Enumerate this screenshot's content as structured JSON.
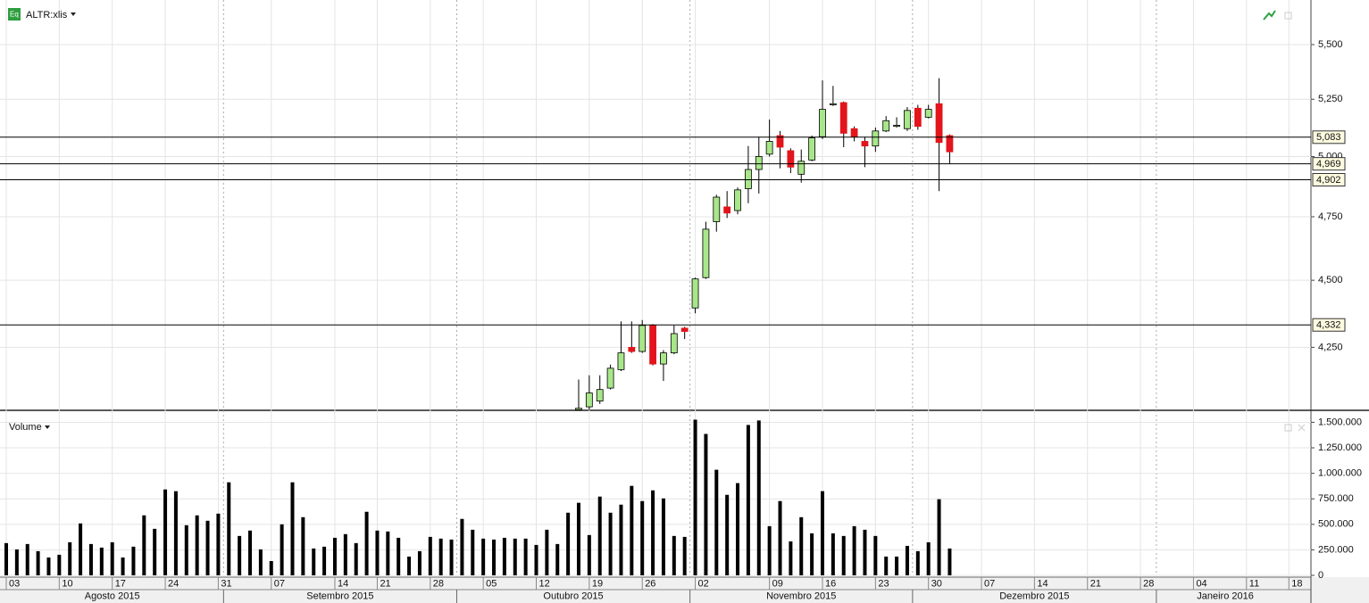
{
  "chart_data": [
    {
      "type": "candlestick",
      "title": "ALTR:xlis",
      "log_scale": true,
      "grid": true,
      "ylim": [
        4028,
        5713
      ],
      "yticks": [
        {
          "value": 4250,
          "label": "4,250"
        },
        {
          "value": 4500,
          "label": "4,500"
        },
        {
          "value": 4750,
          "label": "4,750"
        },
        {
          "value": 5000,
          "label": "5,000"
        },
        {
          "value": 5250,
          "label": "5,250"
        },
        {
          "value": 5500,
          "label": "5,500"
        }
      ],
      "up_color": "#a8e68a",
      "down_color": "#e3141b",
      "levels": [
        {
          "value": 5083,
          "label": "5,083"
        },
        {
          "value": 4969,
          "label": "4,969"
        },
        {
          "value": 4902,
          "label": "4,902"
        },
        {
          "value": 4332,
          "label": "4,332"
        }
      ],
      "open": [
        null,
        null,
        null,
        null,
        null,
        null,
        null,
        null,
        null,
        null,
        null,
        null,
        null,
        null,
        null,
        null,
        null,
        null,
        null,
        null,
        null,
        null,
        null,
        null,
        null,
        null,
        null,
        null,
        null,
        null,
        null,
        null,
        null,
        null,
        null,
        null,
        null,
        null,
        null,
        null,
        null,
        null,
        null,
        null,
        null,
        null,
        null,
        null,
        null,
        null,
        null,
        null,
        null,
        null,
        4030,
        4040,
        4060,
        4105,
        4170,
        4250,
        4235,
        4330,
        4190,
        4230,
        4320,
        4395,
        4510,
        4730,
        4790,
        4775,
        4865,
        4945,
        5010,
        5090,
        5025,
        4925,
        4985,
        5085,
        5225,
        5235,
        5120,
        5065,
        5045,
        5110,
        5130,
        5120,
        5210,
        5170,
        5230,
        5090,
        null,
        null,
        null,
        null,
        null,
        null,
        null,
        null,
        null,
        null,
        null,
        null,
        null,
        null,
        null,
        null,
        null,
        null,
        null,
        null,
        null,
        null,
        null,
        null,
        null,
        null,
        null,
        null,
        null,
        null,
        null,
        null
      ],
      "high": [
        null,
        null,
        null,
        null,
        null,
        null,
        null,
        null,
        null,
        null,
        null,
        null,
        null,
        null,
        null,
        null,
        null,
        null,
        null,
        null,
        null,
        null,
        null,
        null,
        null,
        null,
        null,
        null,
        null,
        null,
        null,
        null,
        null,
        null,
        null,
        null,
        null,
        null,
        null,
        null,
        null,
        null,
        null,
        null,
        null,
        null,
        null,
        null,
        null,
        null,
        null,
        null,
        null,
        null,
        4135,
        4150,
        4150,
        4188,
        4345,
        4345,
        4350,
        4335,
        4240,
        4330,
        4325,
        4510,
        4730,
        4840,
        4855,
        4870,
        5045,
        5085,
        5160,
        5110,
        5035,
        5030,
        5090,
        5335,
        5310,
        5240,
        5130,
        5085,
        5125,
        5175,
        5170,
        5215,
        5225,
        5225,
        5345,
        5095,
        null,
        null,
        null,
        null,
        null,
        null,
        null,
        null,
        null,
        null,
        null,
        null,
        null,
        null,
        null,
        null,
        null,
        null,
        null,
        null,
        null,
        null,
        null,
        null,
        null,
        null,
        null,
        null,
        null,
        null,
        null,
        null
      ],
      "low": [
        null,
        null,
        null,
        null,
        null,
        null,
        null,
        null,
        null,
        null,
        null,
        null,
        null,
        null,
        null,
        null,
        null,
        null,
        null,
        null,
        null,
        null,
        null,
        null,
        null,
        null,
        null,
        null,
        null,
        null,
        null,
        null,
        null,
        null,
        null,
        null,
        null,
        null,
        null,
        null,
        null,
        null,
        null,
        null,
        null,
        null,
        null,
        null,
        null,
        null,
        null,
        null,
        null,
        null,
        4030,
        4030,
        4050,
        4100,
        4165,
        4230,
        4230,
        4185,
        4130,
        4225,
        4280,
        4375,
        4505,
        4690,
        4745,
        4760,
        4805,
        4845,
        5000,
        4950,
        4930,
        4890,
        4980,
        5075,
        5220,
        5040,
        5065,
        4955,
        5020,
        5105,
        5125,
        5110,
        5115,
        5165,
        4855,
        4970,
        null,
        null,
        null,
        null,
        null,
        null,
        null,
        null,
        null,
        null,
        null,
        null,
        null,
        null,
        null,
        null,
        null,
        null,
        null,
        null,
        null,
        null,
        null,
        null,
        null,
        null,
        null,
        null,
        null,
        null,
        null,
        null
      ],
      "close": [
        null,
        null,
        null,
        null,
        null,
        null,
        null,
        null,
        null,
        null,
        null,
        null,
        null,
        null,
        null,
        null,
        null,
        null,
        null,
        null,
        null,
        null,
        null,
        null,
        null,
        null,
        null,
        null,
        null,
        null,
        null,
        null,
        null,
        null,
        null,
        null,
        null,
        null,
        null,
        null,
        null,
        null,
        null,
        null,
        null,
        null,
        null,
        null,
        null,
        null,
        null,
        null,
        null,
        null,
        4035,
        4088,
        4100,
        4175,
        4230,
        4235,
        4330,
        4190,
        4230,
        4300,
        4308,
        4505,
        4700,
        4830,
        4765,
        4860,
        4945,
        5000,
        5065,
        5040,
        4955,
        4980,
        5080,
        5205,
        5230,
        5100,
        5085,
        5045,
        5110,
        5155,
        5135,
        5200,
        5130,
        5205,
        5060,
        5020,
        null,
        null,
        null,
        null,
        null,
        null,
        null,
        null,
        null,
        null,
        null,
        null,
        null,
        null,
        null,
        null,
        null,
        null,
        null,
        null,
        null,
        null,
        null,
        null,
        null,
        null,
        null,
        null,
        null,
        null,
        null,
        null
      ]
    },
    {
      "type": "bar",
      "title": "Volume",
      "color": "#000000",
      "ylim": [
        0,
        1600000
      ],
      "yticks": [
        0,
        {
          "value": 250000,
          "label": "250.000"
        },
        {
          "value": 500000,
          "label": "500.000"
        },
        {
          "value": 750000,
          "label": "750.000"
        },
        {
          "value": 1000000,
          "label": "1.000.000"
        },
        {
          "value": 1250000,
          "label": "1.250.000"
        },
        {
          "value": 1500000,
          "label": "1.500.000"
        }
      ],
      "categories": [
        "03",
        null,
        null,
        null,
        null,
        "10",
        null,
        null,
        null,
        null,
        "17",
        null,
        null,
        null,
        null,
        "24",
        null,
        null,
        null,
        null,
        "31",
        null,
        null,
        null,
        null,
        "07",
        null,
        null,
        null,
        null,
        null,
        "14",
        null,
        null,
        null,
        "21",
        null,
        null,
        null,
        null,
        "28",
        null,
        null,
        null,
        null,
        "05",
        null,
        null,
        null,
        null,
        "12",
        null,
        null,
        null,
        null,
        "19",
        null,
        null,
        null,
        null,
        "26",
        null,
        null,
        null,
        null,
        "02",
        null,
        null,
        null,
        null,
        null,
        null,
        "09",
        null,
        null,
        null,
        null,
        "16",
        null,
        null,
        null,
        null,
        "23",
        null,
        null,
        null,
        null,
        "30",
        null,
        null,
        null,
        null,
        "07",
        null,
        null,
        null,
        null,
        "14",
        null,
        null,
        null,
        null,
        "21",
        null,
        null,
        null,
        null,
        "28",
        null,
        null,
        null,
        null,
        "04",
        null,
        null,
        null,
        null,
        "11",
        null,
        null,
        null,
        "18"
      ],
      "months": [
        "Agosto 2015",
        "Setembro 2015",
        "Outubro 2015",
        "Novembro 2015",
        "Dezembro 2015",
        "Janeiro 2016"
      ],
      "values": [
        316000,
        254000,
        307000,
        237000,
        175000,
        202000,
        324000,
        509000,
        307000,
        272000,
        324000,
        175000,
        281000,
        588000,
        456000,
        842000,
        825000,
        491000,
        588000,
        535000,
        605000,
        912000,
        386000,
        439000,
        254000,
        140000,
        500000,
        912000,
        570000,
        263000,
        281000,
        368000,
        404000,
        316000,
        623000,
        439000,
        430000,
        368000,
        184000,
        237000,
        377000,
        360000,
        351000,
        553000,
        447000,
        360000,
        351000,
        368000,
        360000,
        360000,
        298000,
        447000,
        307000,
        614000,
        711000,
        395000,
        772000,
        614000,
        693000,
        877000,
        728000,
        833000,
        754000,
        386000,
        377000,
        1526000,
        1386000,
        1035000,
        789000,
        904000,
        1474000,
        1518000,
        482000,
        728000,
        333000,
        570000,
        412000,
        825000,
        412000,
        386000,
        482000,
        447000,
        386000,
        184000,
        184000,
        289000,
        237000,
        324000,
        746000,
        263000,
        null,
        null,
        null,
        null,
        null,
        null,
        null,
        null,
        null,
        null,
        null,
        null,
        null,
        null,
        null,
        null,
        null,
        null,
        null,
        null,
        null,
        null,
        null,
        null,
        null,
        null,
        null,
        null,
        null,
        null,
        null,
        null
      ]
    }
  ]
}
